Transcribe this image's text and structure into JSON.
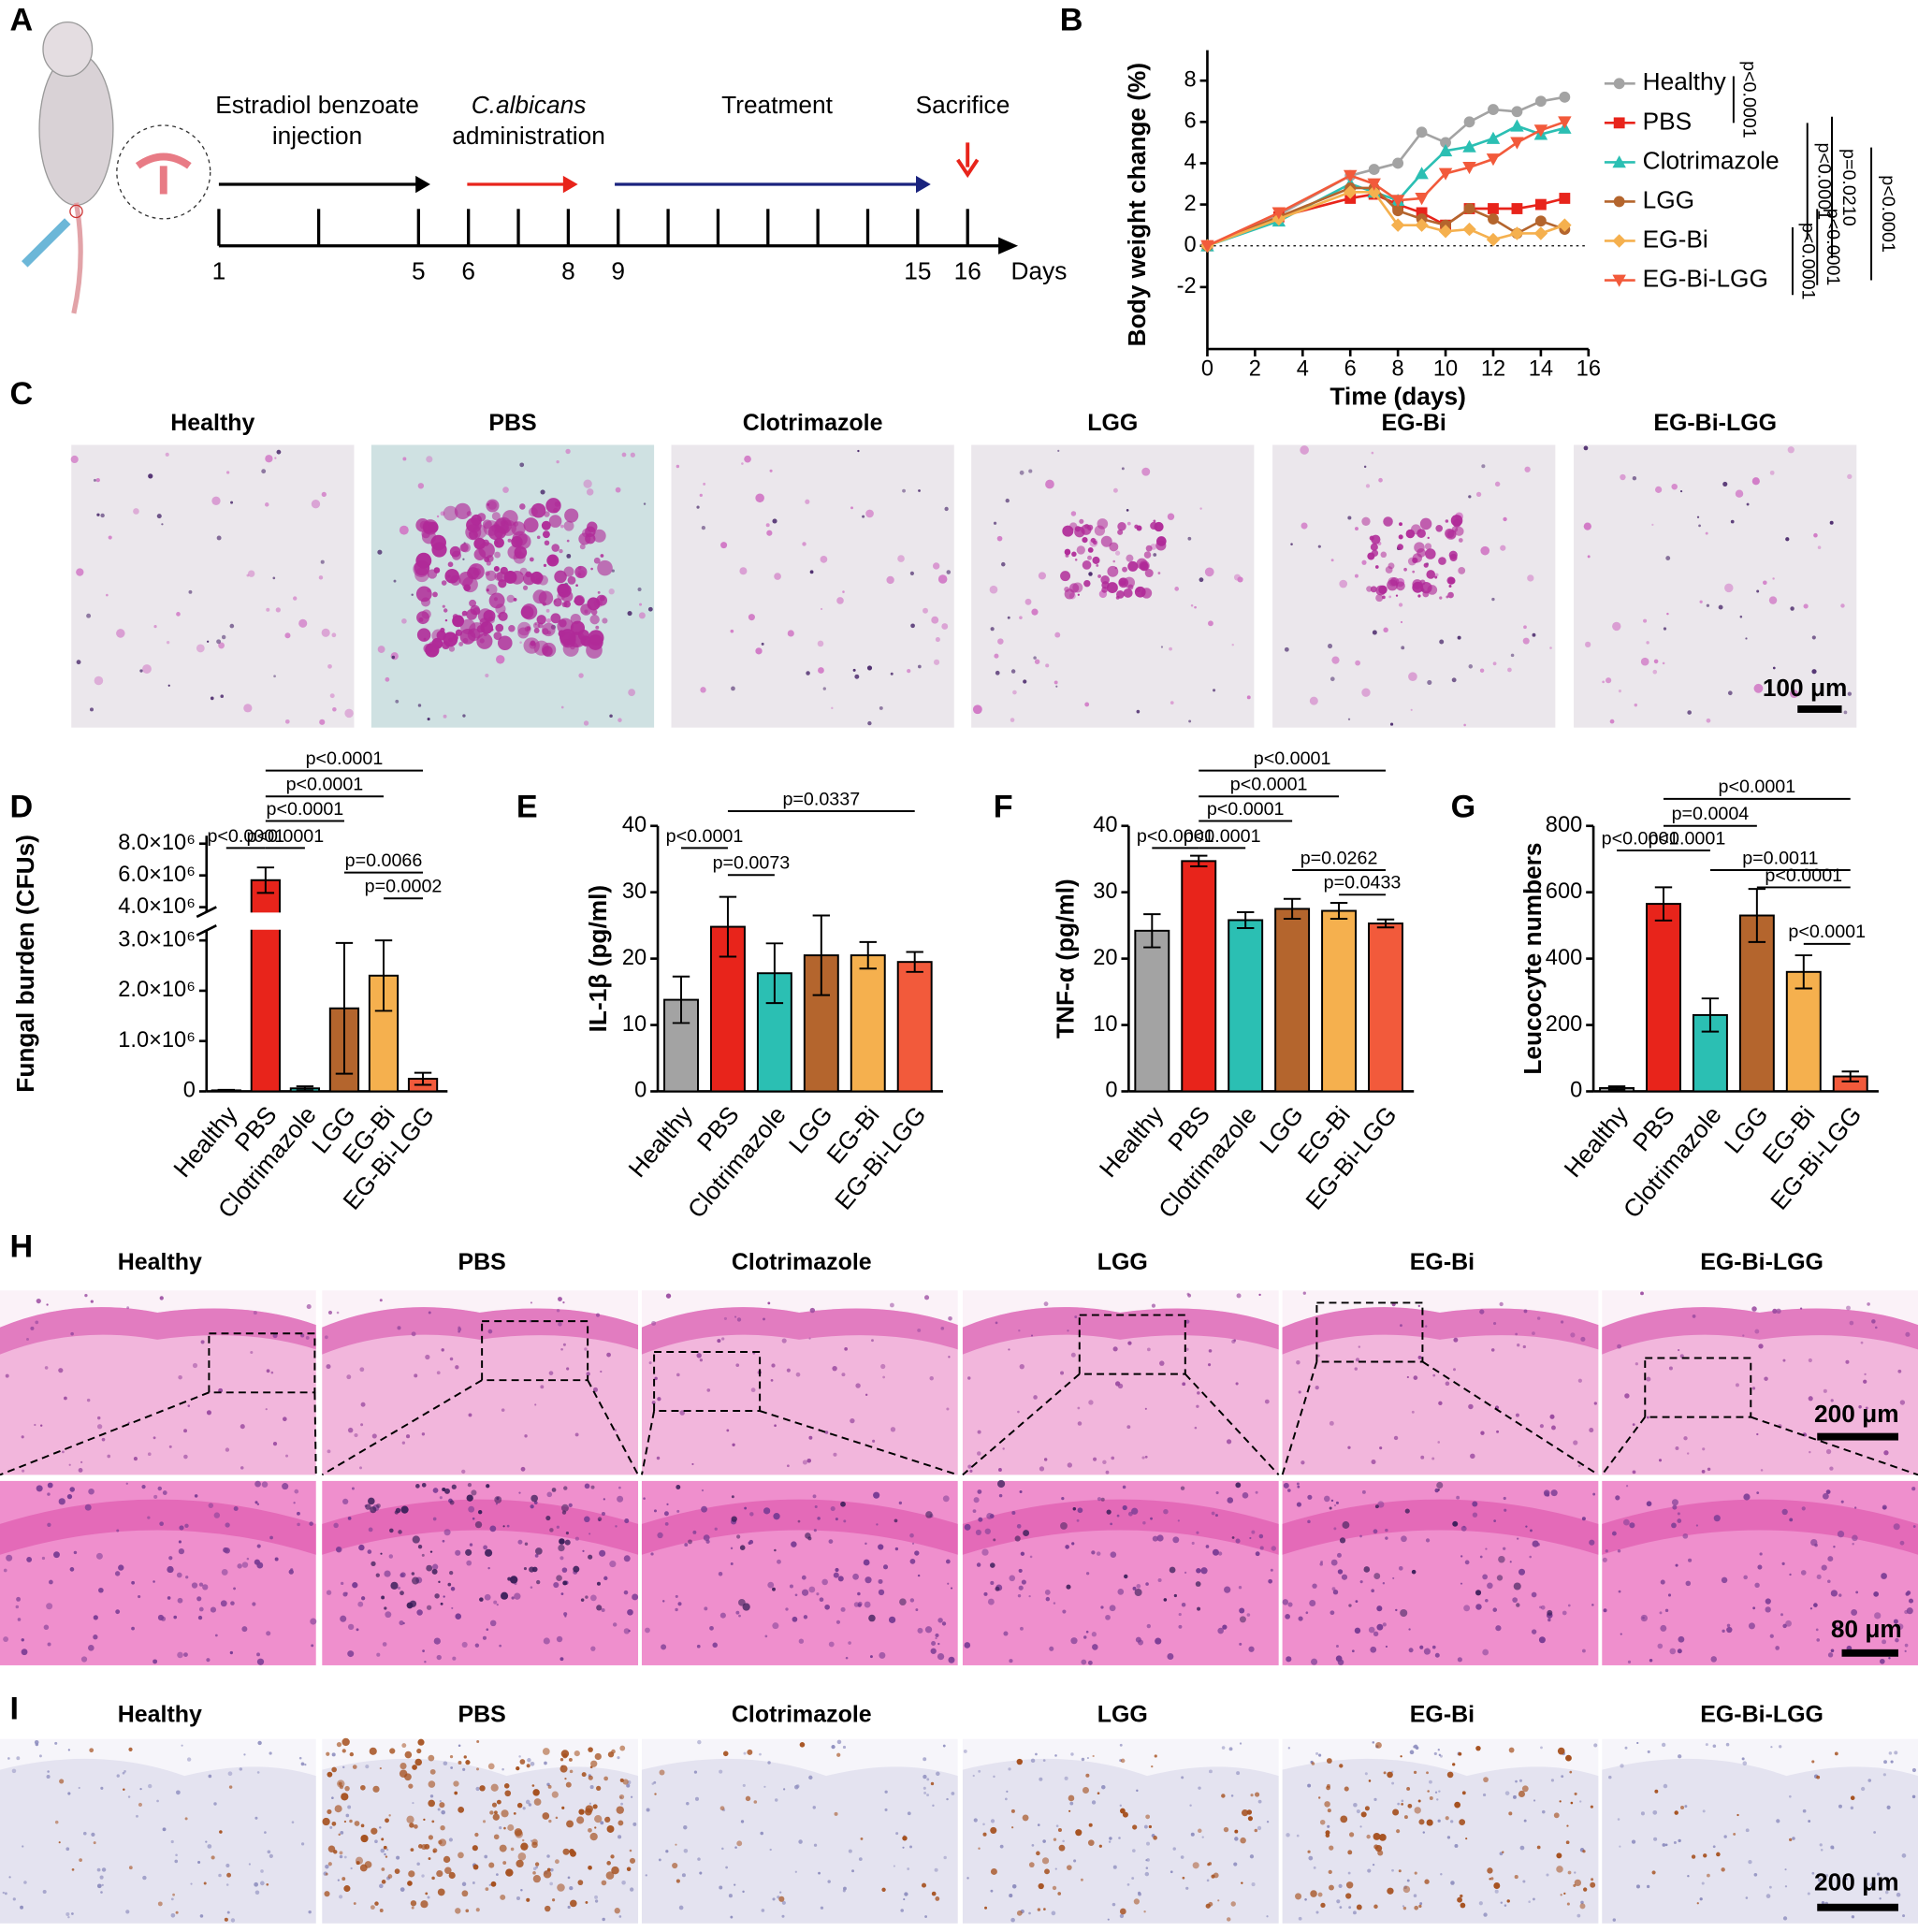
{
  "panel_labels": [
    "A",
    "B",
    "C",
    "D",
    "E",
    "F",
    "G",
    "H",
    "I"
  ],
  "timeline": {
    "steps": [
      {
        "lines": [
          "Estradiol benzoate",
          "injection"
        ]
      },
      {
        "lines": [
          "C.albicans",
          "administration"
        ]
      },
      {
        "lines": [
          "Treatment"
        ]
      },
      {
        "lines": [
          "Sacrifice"
        ]
      }
    ],
    "ticks": [
      1,
      5,
      6,
      8,
      9,
      15,
      16
    ],
    "unit": "Days"
  },
  "chart_data": [
    {
      "type": "line",
      "ylabel": "Body weight change (%)",
      "xlabel": "Time (days)",
      "x": [
        0,
        3,
        6,
        7,
        8,
        9,
        10,
        11,
        12,
        13,
        14,
        15
      ],
      "series": [
        {
          "name": "Healthy",
          "color": "#a3a3a3",
          "marker": "circle",
          "values": [
            0,
            1.5,
            3.4,
            3.7,
            4.0,
            5.5,
            5.0,
            6.0,
            6.6,
            6.5,
            7.0,
            7.2
          ]
        },
        {
          "name": "PBS",
          "color": "#e8241b",
          "marker": "square",
          "values": [
            0,
            1.4,
            2.3,
            2.5,
            2.0,
            1.6,
            1.0,
            1.8,
            1.8,
            1.8,
            2.0,
            2.3
          ]
        },
        {
          "name": "Clotrimazole",
          "color": "#2bbfb3",
          "marker": "triangle-up",
          "values": [
            0,
            1.2,
            3.0,
            2.6,
            2.2,
            3.5,
            4.6,
            4.8,
            5.2,
            5.8,
            5.4,
            5.7
          ]
        },
        {
          "name": "LGG",
          "color": "#b4652d",
          "marker": "circle",
          "values": [
            0,
            1.4,
            2.8,
            2.8,
            1.7,
            1.3,
            1.0,
            1.8,
            1.3,
            0.6,
            1.2,
            0.8
          ]
        },
        {
          "name": "EG-Bi",
          "color": "#f5b04e",
          "marker": "diamond",
          "values": [
            0,
            1.3,
            2.6,
            2.6,
            1.0,
            1.0,
            0.7,
            0.8,
            0.3,
            0.6,
            0.6,
            1.0
          ]
        },
        {
          "name": "EG-Bi-LGG",
          "color": "#f25a3b",
          "marker": "triangle-down",
          "values": [
            0,
            1.6,
            3.4,
            3.0,
            2.2,
            2.3,
            3.5,
            3.8,
            4.2,
            5.0,
            5.6,
            6.0
          ]
        }
      ],
      "xlim": [
        0,
        16
      ],
      "xticks": [
        0,
        2,
        4,
        6,
        8,
        10,
        12,
        14,
        16
      ],
      "ylim": [
        -5,
        9
      ],
      "yticks": [
        -2,
        0,
        2,
        4,
        6,
        8
      ],
      "zero_line": true,
      "annotations": [
        "p<0.0001",
        "p<0.0001",
        "p=0.0210",
        "p<0.0001",
        "p<0.0001",
        "p<0.0001"
      ]
    },
    {
      "type": "bar",
      "ylabel": "Fungal burden (CFUs)",
      "categories": [
        "Healthy",
        "PBS",
        "Clotrimazole",
        "LGG",
        "EG-Bi",
        "EG-Bi-LGG"
      ],
      "values": [
        20000,
        5700000,
        60000,
        1650000,
        2300000,
        250000
      ],
      "errors": [
        10000,
        800000,
        40000,
        1300000,
        700000,
        120000
      ],
      "colors": [
        "#a3a3a3",
        "#e8241b",
        "#2bbfb3",
        "#b4652d",
        "#f5b04e",
        "#f25a3b"
      ],
      "ylim": [
        0,
        8500000
      ],
      "ybreak": [
        3200000,
        3700000
      ],
      "yticks": [
        0,
        {
          "value": 1000000,
          "label": "1.0×10⁶"
        },
        {
          "value": 2000000,
          "label": "2.0×10⁶"
        },
        {
          "value": 3000000,
          "label": "3.0×10⁶"
        },
        {
          "value": 4000000,
          "label": "4.0×10⁶"
        },
        {
          "value": 6000000,
          "label": "6.0×10⁶"
        },
        {
          "value": 8000000,
          "label": "8.0×10⁶"
        }
      ],
      "annotations": [
        "p<0.0001",
        "p<0.0001",
        "p<0.0001",
        "p<0.0001",
        "p<0.0001",
        "p=0.0066",
        "p=0.0002"
      ]
    },
    {
      "type": "bar",
      "ylabel": "IL-1β (pg/ml)",
      "categories": [
        "Healthy",
        "PBS",
        "Clotrimazole",
        "LGG",
        "EG-Bi",
        "EG-Bi-LGG"
      ],
      "values": [
        13.8,
        24.8,
        17.8,
        20.5,
        20.5,
        19.5
      ],
      "errors": [
        3.5,
        4.5,
        4.5,
        6,
        2,
        1.5
      ],
      "colors": [
        "#a3a3a3",
        "#e8241b",
        "#2bbfb3",
        "#b4652d",
        "#f5b04e",
        "#f25a3b"
      ],
      "ylim": [
        0,
        40
      ],
      "yticks": [
        0,
        10,
        20,
        30,
        40
      ],
      "annotations": [
        "p<0.0001",
        "p=0.0073",
        "p=0.0337"
      ]
    },
    {
      "type": "bar",
      "ylabel": "TNF-α (pg/ml)",
      "categories": [
        "Healthy",
        "PBS",
        "Clotrimazole",
        "LGG",
        "EG-Bi",
        "EG-Bi-LGG"
      ],
      "values": [
        24.2,
        34.7,
        25.8,
        27.5,
        27.2,
        25.3
      ],
      "errors": [
        2.5,
        0.8,
        1.2,
        1.5,
        1.2,
        0.6
      ],
      "colors": [
        "#a3a3a3",
        "#e8241b",
        "#2bbfb3",
        "#b4652d",
        "#f5b04e",
        "#f25a3b"
      ],
      "ylim": [
        0,
        40
      ],
      "yticks": [
        0,
        10,
        20,
        30,
        40
      ],
      "annotations": [
        "p<0.0001",
        "p<0.0001",
        "p<0.0001",
        "p<0.0001",
        "p<0.0001",
        "p=0.0262",
        "p=0.0433"
      ]
    },
    {
      "type": "bar",
      "ylabel": "Leucocyte numbers",
      "categories": [
        "Healthy",
        "PBS",
        "Clotrimazole",
        "LGG",
        "EG-Bi",
        "EG-Bi-LGG"
      ],
      "values": [
        10,
        565,
        230,
        530,
        360,
        45
      ],
      "errors": [
        5,
        50,
        50,
        80,
        50,
        15
      ],
      "colors": [
        "#a3a3a3",
        "#e8241b",
        "#2bbfb3",
        "#b4652d",
        "#f5b04e",
        "#f25a3b"
      ],
      "ylim": [
        0,
        800
      ],
      "yticks": [
        0,
        200,
        400,
        600,
        800
      ],
      "annotations": [
        "p<0.0001",
        "p=0.0004",
        "p<0.0001",
        "p<0.0001",
        "p=0.0011",
        "p<0.0001",
        "p<0.0001"
      ]
    }
  ],
  "micrographs": {
    "C": {
      "titles": [
        "Healthy",
        "PBS",
        "Clotrimazole",
        "LGG",
        "EG-Bi",
        "EG-Bi-LGG"
      ],
      "scale_bar": "100 μm"
    },
    "H": {
      "titles": [
        "Healthy",
        "PBS",
        "Clotrimazole",
        "LGG",
        "EG-Bi",
        "EG-Bi-LGG"
      ],
      "scale_bars": [
        "200 μm",
        "80 μm"
      ]
    },
    "I": {
      "titles": [
        "Healthy",
        "PBS",
        "Clotrimazole",
        "LGG",
        "EG-Bi",
        "EG-Bi-LGG"
      ],
      "scale_bar": "200 μm"
    }
  }
}
